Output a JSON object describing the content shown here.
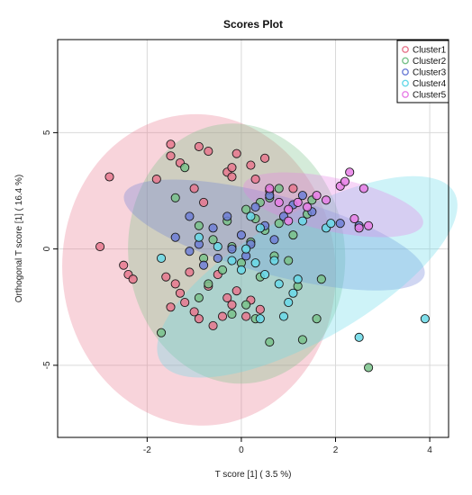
{
  "chart_data": {
    "type": "scatter",
    "title": "Scores Plot",
    "xlabel": "T score [1] ( 3.5 %)",
    "ylabel": "Orthogonal T score [1] ( 16.4 %)",
    "xlim": [
      -3.9,
      4.4
    ],
    "ylim": [
      -8.1,
      9.0
    ],
    "x_ticks": [
      -2,
      0,
      2,
      4
    ],
    "y_ticks": [
      -5,
      0,
      5
    ],
    "grid": true,
    "legend_position": "top-right",
    "series": [
      {
        "name": "Cluster1",
        "color": "#e8788e",
        "ellipse": {
          "cx": -0.9,
          "cy": -0.9,
          "rx": 2.9,
          "ry": 6.7,
          "angle_deg": -5
        },
        "points": [
          [
            -3.0,
            0.1
          ],
          [
            -2.8,
            3.1
          ],
          [
            -2.5,
            -0.7
          ],
          [
            -2.4,
            -1.1
          ],
          [
            -2.3,
            -1.3
          ],
          [
            -1.8,
            3.0
          ],
          [
            -1.5,
            4.5
          ],
          [
            -1.5,
            4.0
          ],
          [
            -1.3,
            3.7
          ],
          [
            -0.9,
            4.4
          ],
          [
            -0.7,
            4.2
          ],
          [
            -0.3,
            3.3
          ],
          [
            -0.2,
            3.1
          ],
          [
            -0.2,
            3.5
          ],
          [
            -0.1,
            4.1
          ],
          [
            0.2,
            3.6
          ],
          [
            0.5,
            3.9
          ],
          [
            0.3,
            3.0
          ],
          [
            0.6,
            2.5
          ],
          [
            -1.0,
            2.6
          ],
          [
            -0.8,
            2.0
          ],
          [
            -1.6,
            -1.2
          ],
          [
            -1.4,
            -1.5
          ],
          [
            -1.3,
            -1.9
          ],
          [
            -1.2,
            -2.3
          ],
          [
            -1.5,
            -2.5
          ],
          [
            -1.0,
            -2.7
          ],
          [
            -0.9,
            -3.0
          ],
          [
            -0.6,
            -3.3
          ],
          [
            -0.4,
            -2.9
          ],
          [
            -0.3,
            -2.1
          ],
          [
            -0.1,
            -1.8
          ],
          [
            0.2,
            -2.2
          ],
          [
            0.4,
            -2.6
          ],
          [
            -0.7,
            -1.6
          ],
          [
            -0.5,
            -1.1
          ],
          [
            1.1,
            2.6
          ],
          [
            -1.1,
            -1.0
          ],
          [
            -0.2,
            -2.4
          ],
          [
            0.1,
            -2.9
          ]
        ]
      },
      {
        "name": "Cluster2",
        "color": "#79c28a",
        "ellipse": {
          "cx": -0.1,
          "cy": -0.2,
          "rx": 2.3,
          "ry": 5.6,
          "angle_deg": -6
        },
        "points": [
          [
            -1.7,
            -3.6
          ],
          [
            -1.2,
            3.5
          ],
          [
            -0.9,
            -2.1
          ],
          [
            -0.8,
            -0.4
          ],
          [
            -0.7,
            -1.5
          ],
          [
            -0.6,
            0.4
          ],
          [
            -0.4,
            -0.9
          ],
          [
            -0.3,
            1.2
          ],
          [
            -0.2,
            0.1
          ],
          [
            0.0,
            -0.6
          ],
          [
            0.1,
            1.7
          ],
          [
            0.1,
            -2.4
          ],
          [
            0.2,
            0.3
          ],
          [
            0.3,
            1.3
          ],
          [
            0.4,
            -1.2
          ],
          [
            0.4,
            2.0
          ],
          [
            0.5,
            0.8
          ],
          [
            0.6,
            -4.0
          ],
          [
            0.7,
            -0.3
          ],
          [
            0.8,
            1.1
          ],
          [
            0.8,
            2.6
          ],
          [
            1.0,
            -0.5
          ],
          [
            1.1,
            0.6
          ],
          [
            1.2,
            -1.6
          ],
          [
            1.3,
            -3.9
          ],
          [
            1.4,
            1.5
          ],
          [
            1.5,
            2.1
          ],
          [
            1.6,
            -3.0
          ],
          [
            1.7,
            -1.3
          ],
          [
            2.7,
            -5.1
          ],
          [
            0.3,
            -3.0
          ],
          [
            -0.2,
            -2.8
          ],
          [
            0.6,
            2.2
          ],
          [
            -1.4,
            2.2
          ],
          [
            -0.9,
            1.0
          ]
        ]
      },
      {
        "name": "Cluster3",
        "color": "#6e7fd6",
        "ellipse": {
          "cx": 0.7,
          "cy": 0.6,
          "rx": 3.3,
          "ry": 1.7,
          "angle_deg": 15
        },
        "points": [
          [
            -1.4,
            0.5
          ],
          [
            -1.1,
            -0.1
          ],
          [
            -0.9,
            0.2
          ],
          [
            -0.8,
            -0.7
          ],
          [
            -0.6,
            0.9
          ],
          [
            -0.5,
            -0.4
          ],
          [
            -0.3,
            1.4
          ],
          [
            -0.2,
            0.0
          ],
          [
            0.0,
            0.6
          ],
          [
            0.2,
            0.2
          ],
          [
            0.3,
            1.8
          ],
          [
            0.5,
            1.0
          ],
          [
            0.6,
            2.3
          ],
          [
            0.7,
            0.4
          ],
          [
            0.9,
            1.4
          ],
          [
            1.1,
            1.9
          ],
          [
            1.3,
            2.3
          ],
          [
            1.5,
            1.6
          ],
          [
            2.1,
            1.1
          ],
          [
            2.5,
            1.0
          ],
          [
            -1.1,
            1.4
          ],
          [
            0.1,
            -0.3
          ]
        ]
      },
      {
        "name": "Cluster4",
        "color": "#68d9e8",
        "ellipse": {
          "cx": 1.4,
          "cy": -1.2,
          "rx": 3.6,
          "ry": 2.7,
          "angle_deg": -30
        },
        "points": [
          [
            -1.7,
            -0.4
          ],
          [
            -0.9,
            0.5
          ],
          [
            -0.5,
            0.1
          ],
          [
            -0.2,
            -0.5
          ],
          [
            0.0,
            -0.9
          ],
          [
            0.1,
            0.0
          ],
          [
            0.3,
            -0.6
          ],
          [
            0.4,
            0.9
          ],
          [
            0.5,
            -1.1
          ],
          [
            0.7,
            -0.5
          ],
          [
            0.8,
            -1.5
          ],
          [
            0.9,
            -2.9
          ],
          [
            1.1,
            -1.9
          ],
          [
            1.2,
            -1.3
          ],
          [
            1.3,
            1.2
          ],
          [
            1.8,
            0.9
          ],
          [
            1.9,
            1.1
          ],
          [
            2.5,
            -3.8
          ],
          [
            3.9,
            -3.0
          ],
          [
            0.4,
            -3.0
          ],
          [
            1.0,
            -2.3
          ],
          [
            0.2,
            1.4
          ]
        ]
      },
      {
        "name": "Cluster5",
        "color": "#e77fe6",
        "ellipse": {
          "cx": 1.95,
          "cy": 1.9,
          "rx": 1.95,
          "ry": 1.15,
          "angle_deg": 12
        },
        "points": [
          [
            0.6,
            2.6
          ],
          [
            0.8,
            2.0
          ],
          [
            1.0,
            1.7
          ],
          [
            1.2,
            2.0
          ],
          [
            1.4,
            1.8
          ],
          [
            1.6,
            2.3
          ],
          [
            1.8,
            2.1
          ],
          [
            2.1,
            2.7
          ],
          [
            2.2,
            2.9
          ],
          [
            2.3,
            3.3
          ],
          [
            2.4,
            1.3
          ],
          [
            2.6,
            2.6
          ],
          [
            2.7,
            1.0
          ],
          [
            1.0,
            1.2
          ],
          [
            2.5,
            0.9
          ]
        ]
      }
    ]
  }
}
